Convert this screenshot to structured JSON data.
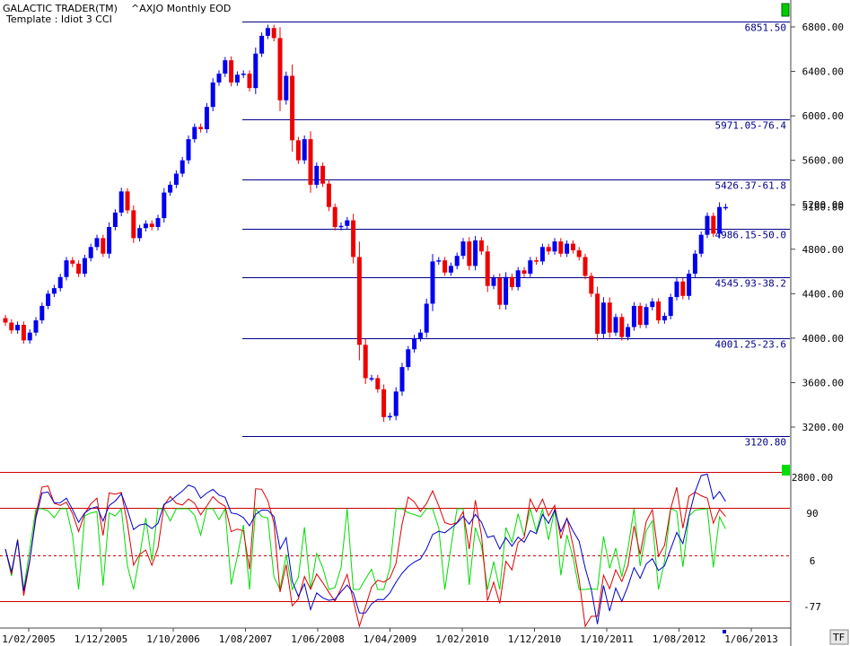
{
  "header": {
    "app_title": "GALACTIC TRADER(TM)",
    "symbol_title": "^AXJO Monthly EOD",
    "template": "Template : Idiot 3 CCI"
  },
  "corner_button_label": "TF",
  "colors": {
    "up_candle": "#0000ee",
    "down_candle": "#ee0000",
    "fib_line": "#000088",
    "axis_text": "#000000",
    "cci_green": "#00dd00",
    "cci_red": "#dd0000",
    "cci_blue": "#0000cc",
    "ref_line": "#cc0000",
    "marker_green": "#00cc00"
  },
  "chart_data": [
    {
      "type": "candlestick",
      "title": "^AXJO Monthly EOD",
      "ylim": [
        2870,
        7020
      ],
      "y_ticks": [
        "6800.00",
        "6400.00",
        "6000.00",
        "5600.00",
        "5200.00",
        "4800.00",
        "4400.00",
        "4000.00",
        "3600.00",
        "3200.00"
      ],
      "last_price": "5180.80",
      "fib_levels": [
        {
          "value": 6851.5,
          "label": "6851.50"
        },
        {
          "value": 5971.05,
          "label": "5971.05-76.4"
        },
        {
          "value": 5426.37,
          "label": "5426.37-61.8"
        },
        {
          "value": 4986.15,
          "label": "4986.15-50.0"
        },
        {
          "value": 4545.93,
          "label": "4545.93-38.2"
        },
        {
          "value": 4001.25,
          "label": "4001.25-23.6"
        },
        {
          "value": 3120.8,
          "label": "3120.80"
        }
      ],
      "x_labels": [
        "1/02/2005",
        "1/12/2005",
        "1/10/2006",
        "1/08/2007",
        "1/06/2008",
        "1/04/2009",
        "1/02/2010",
        "1/12/2010",
        "1/10/2011",
        "1/08/2012",
        "1/06/2013"
      ],
      "closes": [
        4140,
        4070,
        4120,
        3980,
        4050,
        4160,
        4290,
        4400,
        4450,
        4550,
        4700,
        4670,
        4580,
        4720,
        4820,
        4900,
        4760,
        5000,
        5130,
        5320,
        5150,
        4900,
        4990,
        5030,
        5000,
        5080,
        5310,
        5380,
        5480,
        5600,
        5790,
        5900,
        5880,
        6080,
        6300,
        6380,
        6500,
        6300,
        6370,
        6380,
        6250,
        6560,
        6720,
        6790,
        6700,
        6140,
        6360,
        5780,
        5600,
        5790,
        5380,
        5550,
        5390,
        5180,
        5000,
        5010,
        5060,
        4730,
        3940,
        3640,
        3640,
        3540,
        3290,
        3300,
        3520,
        3740,
        3900,
        4000,
        4050,
        4310,
        4690,
        4700,
        4590,
        4650,
        4740,
        4870,
        4650,
        4880,
        4780,
        4470,
        4540,
        4300,
        4550,
        4460,
        4610,
        4580,
        4700,
        4690,
        4820,
        4780,
        4870,
        4760,
        4850,
        4790,
        4730,
        4560,
        4400,
        4040,
        4320,
        4050,
        4190,
        4010,
        4100,
        4290,
        4120,
        4280,
        4330,
        4160,
        4200,
        4370,
        4510,
        4380,
        4580,
        4760,
        4930,
        5100,
        4940,
        5180,
        5180
      ],
      "cci_indicator": {
        "y_ticks": [
          "2800.00",
          "90",
          "6",
          "-77"
        ]
      }
    }
  ]
}
